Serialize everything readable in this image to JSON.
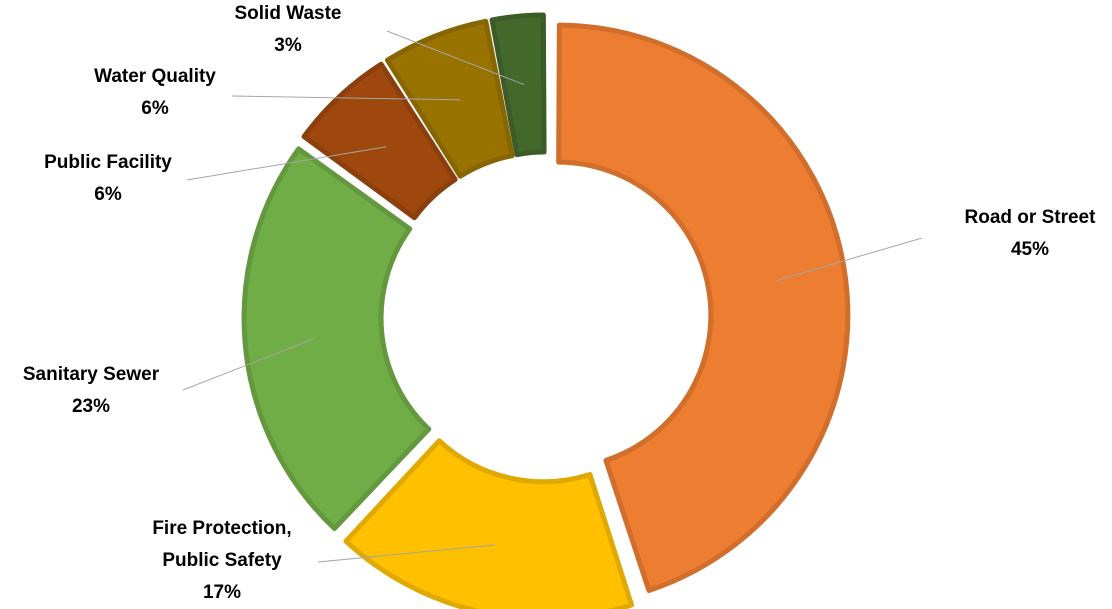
{
  "chart_data": {
    "type": "pie",
    "subtype": "doughnut",
    "title": "",
    "slices": [
      {
        "name": "Road or Street",
        "value": 45,
        "label": "45%",
        "color": "#ED7D31"
      },
      {
        "name": "Fire Protection, Public Safety",
        "value": 17,
        "label": "17%",
        "color": "#FFC000"
      },
      {
        "name": "Sanitary Sewer",
        "value": 23,
        "label": "23%",
        "color": "#70AD47"
      },
      {
        "name": "Public Facility",
        "value": 6,
        "label": "6%",
        "color": "#9E480E"
      },
      {
        "name": "Water Quality",
        "value": 6,
        "label": "6%",
        "color": "#997300"
      },
      {
        "name": "Solid Waste",
        "value": 3,
        "label": "3%",
        "color": "#43682B"
      }
    ],
    "legend": "none",
    "data_labels": "outside-with-leader-lines",
    "exploded": true
  }
}
